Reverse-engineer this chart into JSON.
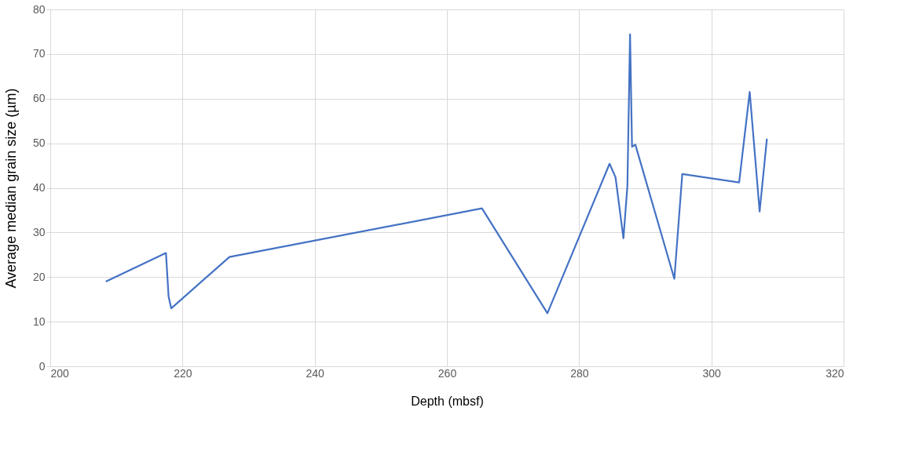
{
  "chart_data": {
    "type": "line",
    "xlabel": "Depth (mbsf)",
    "ylabel": "Average median grain size (µm)",
    "x": [
      208.4,
      217.5,
      217.9,
      218.3,
      227.1,
      265.3,
      275.2,
      284.6,
      285.5,
      286.7,
      287.3,
      287.7,
      288.0,
      288.5,
      294.4,
      295.6,
      304.2,
      305.8,
      307.3,
      308.4
    ],
    "series": [
      {
        "color": "#4472c4",
        "values": [
          19.0,
          25.4,
          15.6,
          13.0,
          24.5,
          35.4,
          11.9,
          45.4,
          42.4,
          28.7,
          40.5,
          74.4,
          49.2,
          49.7,
          19.6,
          43.1,
          41.2,
          61.5,
          34.7,
          51.0
        ]
      }
    ],
    "xlim": [
      200,
      320
    ],
    "xticks": [
      200,
      220,
      240,
      260,
      280,
      300,
      320
    ],
    "ylim": [
      0,
      80
    ],
    "yticks": [
      0,
      10,
      20,
      30,
      40,
      50,
      60,
      70,
      80
    ],
    "grid": true,
    "marker": "none",
    "line_style": "solid"
  }
}
